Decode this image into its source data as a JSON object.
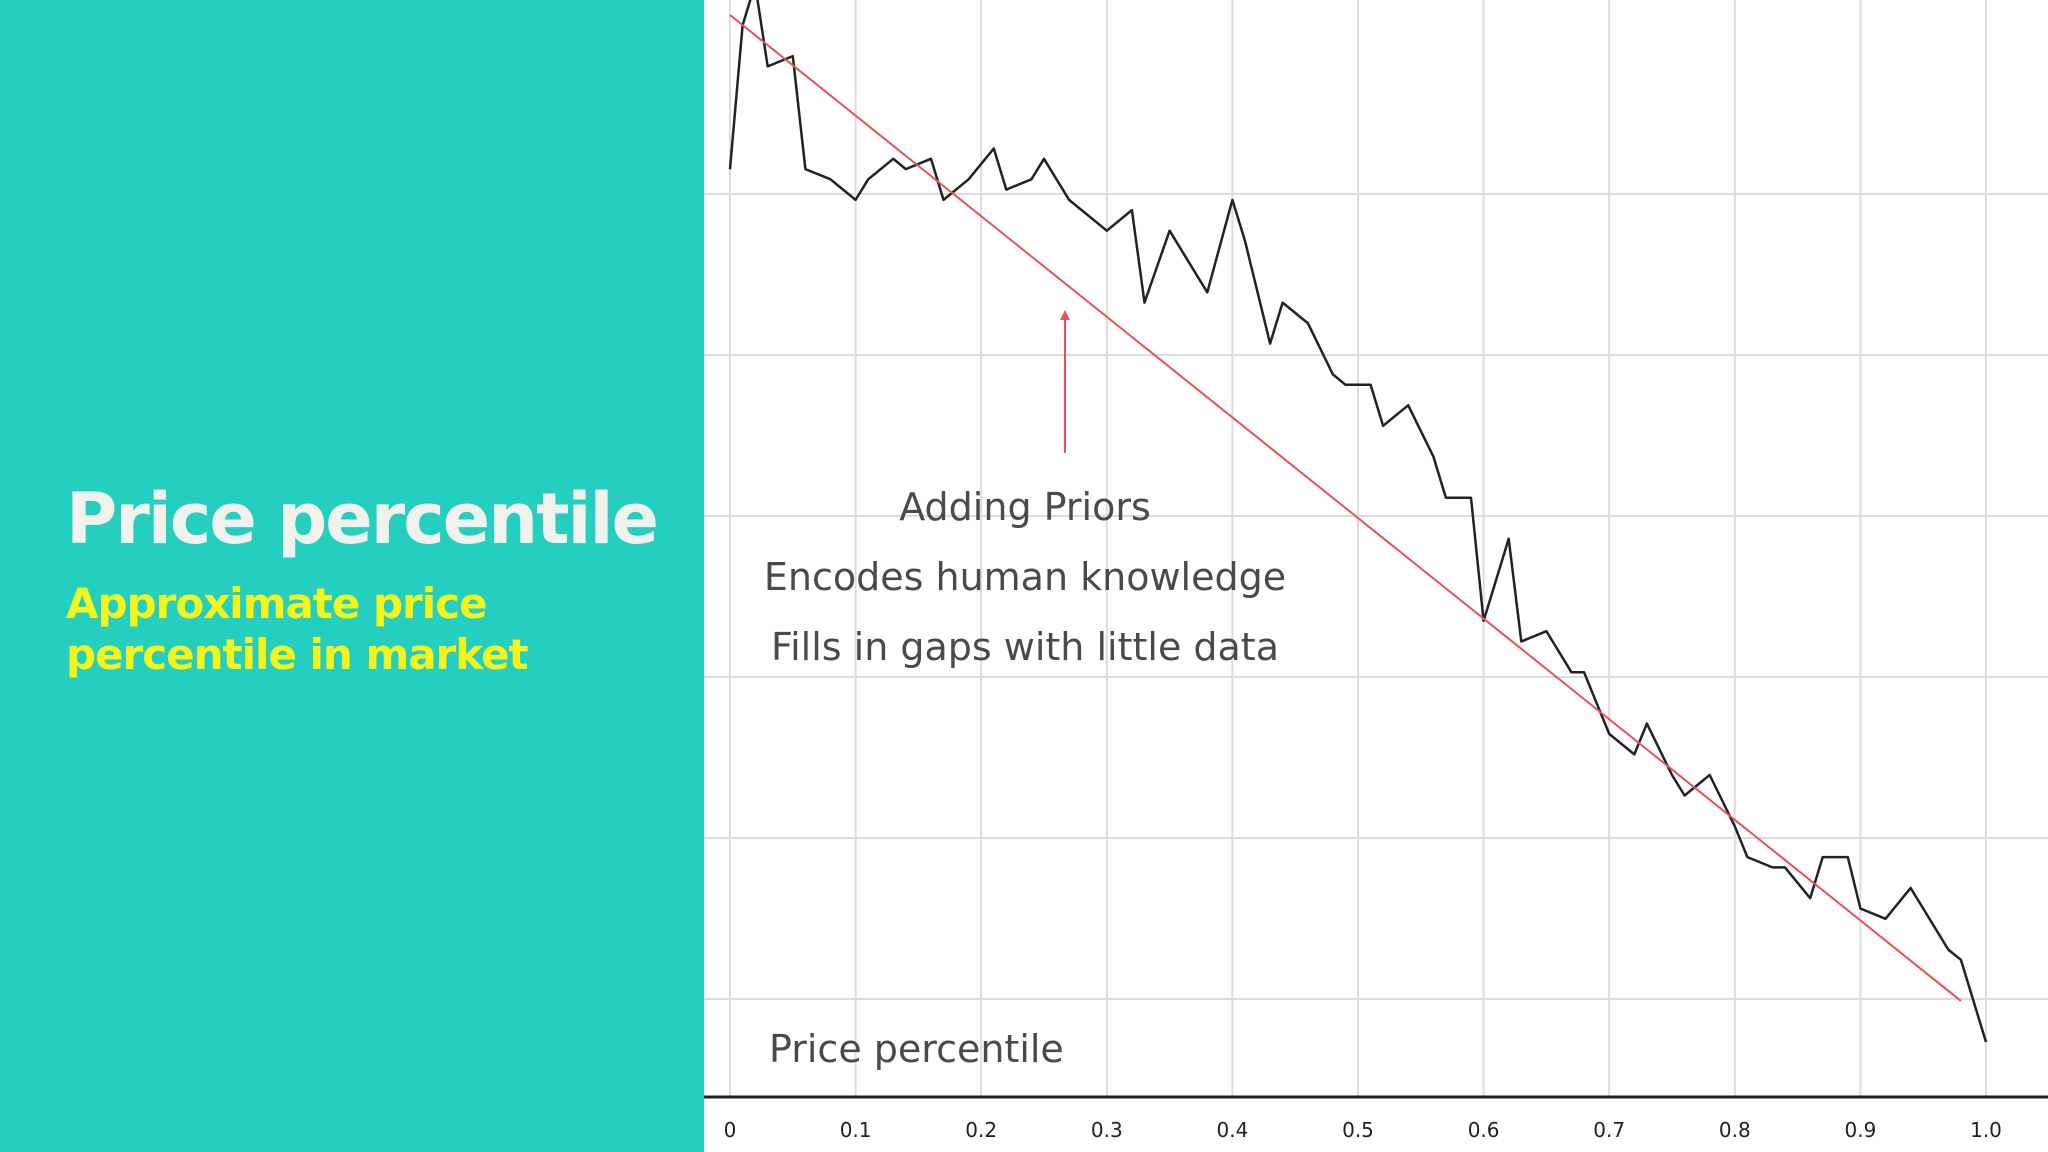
{
  "slide": {
    "title": "Price percentile",
    "subtitle": "Approximate price percentile in market"
  },
  "colors": {
    "panel": "#25cfc0",
    "title": "#f2f2ec",
    "subtitle": "#f5f51c",
    "line": "#222222",
    "prior": "#e8505b"
  },
  "chart_data": {
    "type": "line",
    "xlabel": "Price percentile",
    "ylabel": "",
    "xlim": [
      0,
      1.0
    ],
    "ylim": [
      0,
      1
    ],
    "grid": true,
    "xticks": [
      "0",
      "0.1",
      "0.2",
      "0.3",
      "0.4",
      "0.5",
      "0.6",
      "0.7",
      "0.8",
      "0.9",
      "1.0"
    ],
    "series": [
      {
        "x": [
          0,
          0.01,
          0.02,
          0.03,
          0.05,
          0.06,
          0.08,
          0.1,
          0.11,
          0.13,
          0.14,
          0.16,
          0.17,
          0.19,
          0.21,
          0.22,
          0.24,
          0.25,
          0.27,
          0.3,
          0.32,
          0.33,
          0.35,
          0.37,
          0.38,
          0.4,
          0.41,
          0.43,
          0.44,
          0.46,
          0.48,
          0.49,
          0.51,
          0.52,
          0.54,
          0.56,
          0.57,
          0.59,
          0.6,
          0.62,
          0.63,
          0.65,
          0.67,
          0.68,
          0.7,
          0.72,
          0.73,
          0.75,
          0.76,
          0.78,
          0.8,
          0.81,
          0.83,
          0.84,
          0.86,
          0.87,
          0.89,
          0.9,
          0.92,
          0.94,
          0.95,
          0.97,
          0.98,
          1.0
        ],
        "values": [
          0.85,
          0.99,
          1.03,
          0.95,
          0.96,
          0.85,
          0.84,
          0.82,
          0.84,
          0.86,
          0.85,
          0.86,
          0.82,
          0.84,
          0.87,
          0.83,
          0.84,
          0.86,
          0.82,
          0.79,
          0.81,
          0.72,
          0.79,
          0.75,
          0.73,
          0.82,
          0.78,
          0.68,
          0.72,
          0.7,
          0.65,
          0.64,
          0.64,
          0.6,
          0.62,
          0.57,
          0.53,
          0.53,
          0.41,
          0.49,
          0.39,
          0.4,
          0.36,
          0.36,
          0.3,
          0.28,
          0.31,
          0.26,
          0.24,
          0.26,
          0.21,
          0.18,
          0.17,
          0.17,
          0.14,
          0.18,
          0.18,
          0.13,
          0.12,
          0.15,
          0.13,
          0.09,
          0.08,
          0.0
        ]
      },
      {
        "x": [
          0,
          0.98
        ],
        "values": [
          1.0,
          0.04
        ]
      }
    ],
    "annotations": [
      "Adding Priors",
      "Encodes human knowledge",
      "Fills in gaps with little data"
    ]
  }
}
